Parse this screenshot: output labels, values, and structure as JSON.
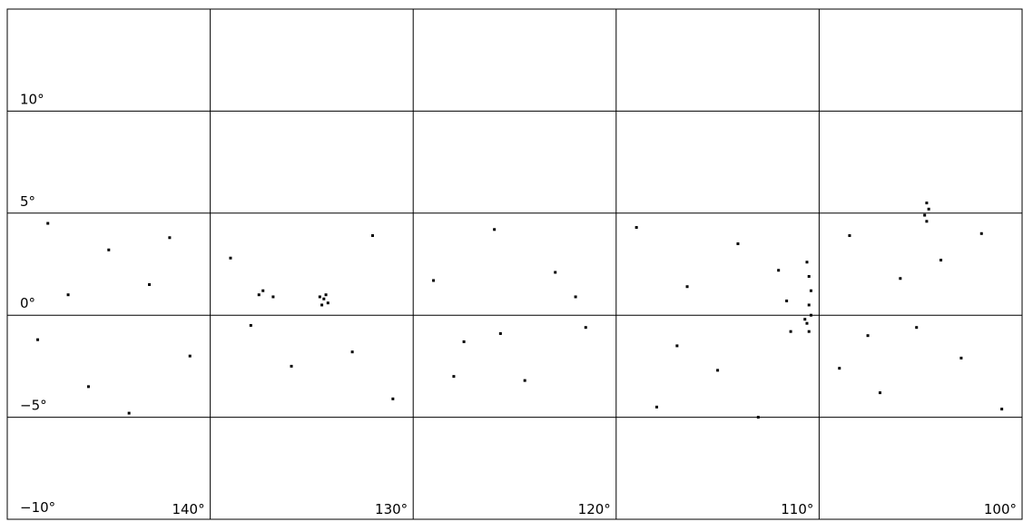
{
  "chart_data": {
    "type": "scatter",
    "xlim": [
      150,
      100
    ],
    "ylim": [
      -10,
      15
    ],
    "xticks": [
      {
        "value": 140,
        "label": "140°"
      },
      {
        "value": 130,
        "label": "130°"
      },
      {
        "value": 120,
        "label": "120°"
      },
      {
        "value": 110,
        "label": "110°"
      },
      {
        "value": 100,
        "label": "100°"
      }
    ],
    "yticks": [
      {
        "value": 10,
        "label": "10°"
      },
      {
        "value": 5,
        "label": "5°"
      },
      {
        "value": 0,
        "label": "0°"
      },
      {
        "value": -5,
        "label": "−5°"
      },
      {
        "value": -10,
        "label": "−10°"
      }
    ],
    "color": "#000000",
    "x": [
      134.4,
      134.2,
      134.6,
      134.5,
      134.3,
      137.4,
      137.6,
      136.9,
      110.6,
      110.5,
      110.4,
      110.7,
      110.5,
      110.4,
      110.5,
      110.6,
      111.4,
      111.6,
      105.2,
      107.6,
      104.7,
      104.6,
      104.8,
      104.7,
      148,
      145,
      143,
      141,
      146,
      148.5,
      139,
      136,
      132,
      131,
      129,
      127.5,
      126,
      124.5,
      123,
      121.5,
      125.7,
      119,
      118,
      116.5,
      115,
      114,
      113,
      112,
      108.5,
      107,
      106,
      103,
      102,
      101,
      147,
      144,
      142,
      138,
      133,
      128,
      122,
      117,
      109,
      104
    ],
    "y": [
      0.8,
      0.6,
      0.9,
      0.5,
      1.0,
      1.2,
      1.0,
      0.9,
      -0.4,
      -0.8,
      0.0,
      -0.2,
      0.5,
      1.2,
      1.9,
      2.6,
      -0.8,
      0.7,
      -0.6,
      -1.0,
      5.5,
      5.2,
      4.9,
      4.6,
      4.5,
      3.2,
      1.5,
      -2,
      -3.5,
      -1.2,
      2.8,
      -2.5,
      3.9,
      -4.1,
      1.7,
      -1.3,
      4.2,
      -3.2,
      2.1,
      -0.6,
      -0.9,
      4.3,
      -4.5,
      1.4,
      -2.7,
      3.5,
      -5.0,
      2.2,
      3.9,
      -3.8,
      1.8,
      -2.1,
      4.0,
      -4.6,
      1.0,
      -4.8,
      3.8,
      -0.5,
      -1.8,
      -3.0,
      0.9,
      -1.5,
      -2.6,
      2.7
    ]
  }
}
